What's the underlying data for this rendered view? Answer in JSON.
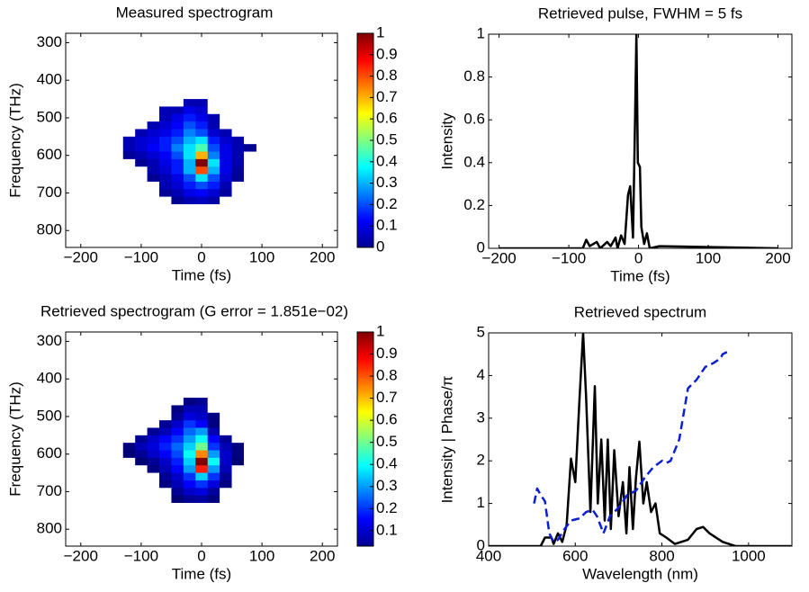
{
  "chart_data": [
    {
      "type": "heatmap",
      "title": "Measured spectrogram",
      "xlabel": "Time (fs)",
      "ylabel": "Frequency (THz)",
      "x": [
        -120,
        -100,
        -80,
        -60,
        -40,
        -20,
        0,
        20,
        40,
        60,
        80
      ],
      "y": [
        440,
        460,
        480,
        500,
        520,
        540,
        560,
        580,
        600,
        620,
        640,
        660,
        680,
        700,
        720,
        740
      ],
      "z": [
        [
          0,
          0,
          0,
          0,
          0,
          0,
          0,
          0,
          0,
          0,
          0
        ],
        [
          0,
          0,
          0,
          0,
          0,
          0.05,
          0.05,
          0,
          0,
          0,
          0
        ],
        [
          0,
          0,
          0,
          0.05,
          0.05,
          0.1,
          0.08,
          0,
          0,
          0,
          0
        ],
        [
          0,
          0,
          0,
          0.05,
          0.1,
          0.15,
          0.1,
          0.05,
          0,
          0,
          0
        ],
        [
          0,
          0,
          0.05,
          0.08,
          0.12,
          0.2,
          0.15,
          0.05,
          0,
          0,
          0
        ],
        [
          0,
          0.05,
          0.08,
          0.1,
          0.15,
          0.25,
          0.2,
          0.08,
          0.05,
          0,
          0
        ],
        [
          0.05,
          0.08,
          0.1,
          0.15,
          0.2,
          0.3,
          0.35,
          0.15,
          0.08,
          0.05,
          0
        ],
        [
          0.05,
          0.08,
          0.12,
          0.15,
          0.25,
          0.35,
          0.45,
          0.2,
          0.1,
          0.05,
          0.02
        ],
        [
          0.02,
          0.05,
          0.08,
          0.12,
          0.2,
          0.35,
          0.7,
          0.25,
          0.1,
          0.05,
          0
        ],
        [
          0,
          0.02,
          0.05,
          0.1,
          0.15,
          0.3,
          1,
          0.35,
          0.1,
          0.05,
          0
        ],
        [
          0,
          0,
          0.05,
          0.08,
          0.15,
          0.3,
          0.8,
          0.3,
          0.1,
          0.03,
          0
        ],
        [
          0,
          0,
          0.02,
          0.05,
          0.1,
          0.2,
          0.35,
          0.2,
          0.08,
          0.02,
          0
        ],
        [
          0,
          0,
          0,
          0.05,
          0.08,
          0.15,
          0.2,
          0.15,
          0.05,
          0,
          0
        ],
        [
          0,
          0,
          0,
          0.02,
          0.05,
          0.1,
          0.12,
          0.08,
          0.03,
          0,
          0
        ],
        [
          0,
          0,
          0,
          0,
          0.02,
          0.05,
          0.06,
          0.04,
          0,
          0,
          0
        ],
        [
          0,
          0,
          0,
          0,
          0,
          0,
          0,
          0,
          0,
          0,
          0
        ]
      ],
      "xlim": [
        -225,
        225
      ],
      "ylim": [
        275,
        845
      ],
      "y_reversed": true,
      "xticks": [
        {
          "value": -200,
          "label": "−200"
        },
        {
          "value": -100,
          "label": "−100"
        },
        0,
        100,
        200
      ],
      "yticks": [
        300,
        400,
        500,
        600,
        700,
        800
      ],
      "colormap": "jet",
      "clim": [
        0,
        1
      ],
      "cticks": [
        0,
        0.1,
        0.2,
        0.3,
        0.4,
        0.5,
        0.6,
        0.7,
        0.8,
        0.9,
        1
      ]
    },
    {
      "type": "line",
      "title": "Retrieved pulse, FWHM = 5 fs",
      "xlabel": "Time (fs)",
      "ylabel": "Intensity",
      "xlim": [
        -215,
        220
      ],
      "ylim": [
        0,
        1
      ],
      "xticks": [
        {
          "value": -200,
          "label": "−200"
        },
        {
          "value": -100,
          "label": "−100"
        },
        0,
        100,
        200
      ],
      "yticks": [
        0,
        0.2,
        0.4,
        0.6,
        0.8,
        1
      ],
      "series": [
        {
          "color": "#000000",
          "style": "solid",
          "x": [
            -200,
            -80,
            -75,
            -70,
            -60,
            -55,
            -45,
            -40,
            -33,
            -30,
            -25,
            -20,
            -15,
            -12,
            -8,
            -5,
            -3,
            -1,
            2,
            4,
            8,
            12,
            16,
            30,
            200
          ],
          "values": [
            0,
            0,
            0.04,
            0.01,
            0.03,
            0,
            0.03,
            0.01,
            0.05,
            0,
            0.06,
            0.02,
            0.25,
            0.29,
            0.05,
            0.6,
            1,
            0.4,
            0.38,
            0.1,
            0.02,
            0.07,
            0,
            0.01,
            0
          ]
        }
      ]
    },
    {
      "type": "heatmap",
      "title": "Retrieved spectrogram (G error = 1.851e−02)",
      "xlabel": "Time (fs)",
      "ylabel": "Frequency (THz)",
      "x": [
        -120,
        -100,
        -80,
        -60,
        -40,
        -20,
        0,
        20,
        40,
        60,
        80
      ],
      "y": [
        440,
        460,
        480,
        500,
        520,
        540,
        560,
        580,
        600,
        620,
        640,
        660,
        680,
        700,
        720,
        740
      ],
      "z": [
        [
          0,
          0,
          0,
          0,
          0,
          0,
          0,
          0,
          0,
          0,
          0
        ],
        [
          0,
          0,
          0,
          0,
          0,
          0.03,
          0.05,
          0,
          0,
          0,
          0
        ],
        [
          0,
          0,
          0,
          0,
          0.03,
          0.08,
          0.08,
          0,
          0,
          0,
          0
        ],
        [
          0,
          0,
          0,
          0,
          0.05,
          0.12,
          0.1,
          0.03,
          0,
          0,
          0
        ],
        [
          0,
          0,
          0,
          0.05,
          0.1,
          0.2,
          0.15,
          0.03,
          0,
          0,
          0
        ],
        [
          0,
          0,
          0.05,
          0.08,
          0.15,
          0.25,
          0.3,
          0.08,
          0,
          0,
          0
        ],
        [
          0,
          0.05,
          0.1,
          0.15,
          0.2,
          0.3,
          0.4,
          0.15,
          0.05,
          0,
          0
        ],
        [
          0.03,
          0.08,
          0.12,
          0.18,
          0.25,
          0.35,
          0.5,
          0.2,
          0.08,
          0.03,
          0
        ],
        [
          0.02,
          0.05,
          0.1,
          0.15,
          0.22,
          0.4,
          0.75,
          0.3,
          0.1,
          0.03,
          0
        ],
        [
          0,
          0.02,
          0.05,
          0.1,
          0.18,
          0.35,
          1,
          0.4,
          0.1,
          0.02,
          0
        ],
        [
          0,
          0,
          0.03,
          0.08,
          0.15,
          0.3,
          0.85,
          0.3,
          0.08,
          0,
          0
        ],
        [
          0,
          0,
          0,
          0.05,
          0.1,
          0.2,
          0.35,
          0.2,
          0.05,
          0,
          0
        ],
        [
          0,
          0,
          0,
          0.03,
          0.08,
          0.15,
          0.2,
          0.12,
          0.03,
          0,
          0
        ],
        [
          0,
          0,
          0,
          0,
          0.05,
          0.1,
          0.12,
          0.06,
          0,
          0,
          0
        ],
        [
          0,
          0,
          0,
          0,
          0.02,
          0.05,
          0.06,
          0.03,
          0,
          0,
          0
        ],
        [
          0,
          0,
          0,
          0,
          0,
          0,
          0,
          0,
          0,
          0,
          0
        ]
      ],
      "xlim": [
        -225,
        225
      ],
      "ylim": [
        275,
        845
      ],
      "y_reversed": true,
      "xticks": [
        {
          "value": -200,
          "label": "−200"
        },
        {
          "value": -100,
          "label": "−100"
        },
        0,
        100,
        200
      ],
      "yticks": [
        300,
        400,
        500,
        600,
        700,
        800
      ],
      "colormap": "jet",
      "clim": [
        0.03,
        1
      ],
      "cticks": [
        0.1,
        0.2,
        0.3,
        0.4,
        0.5,
        0.6,
        0.7,
        0.8,
        0.9,
        1
      ]
    },
    {
      "type": "line",
      "title": "Retrieved spectrum",
      "xlabel": "Wavelength (nm)",
      "ylabel": "Intensity | Phase/π",
      "xlim": [
        400,
        1100
      ],
      "ylim": [
        0,
        5
      ],
      "xticks": [
        400,
        600,
        800,
        1000
      ],
      "yticks": [
        0,
        1,
        2,
        3,
        4,
        5
      ],
      "series": [
        {
          "color": "#000000",
          "style": "solid",
          "x": [
            400,
            520,
            530,
            545,
            550,
            560,
            570,
            580,
            590,
            600,
            610,
            618,
            625,
            635,
            645,
            652,
            660,
            668,
            675,
            682,
            690,
            700,
            710,
            718,
            725,
            733,
            740,
            748,
            757,
            765,
            775,
            785,
            795,
            810,
            830,
            860,
            880,
            895,
            910,
            940,
            970,
            1100
          ],
          "values": [
            0,
            0,
            0.2,
            0.2,
            0.05,
            0.3,
            0.1,
            0.5,
            2.05,
            1.5,
            3.5,
            5,
            3.5,
            0.8,
            3.75,
            1,
            2.5,
            0.6,
            2.5,
            0.4,
            2.25,
            0.7,
            1.5,
            0.3,
            1.85,
            0.4,
            1.6,
            2.45,
            1,
            1.5,
            0.8,
            1,
            0.3,
            0.2,
            0.05,
            0.15,
            0.4,
            0.45,
            0.3,
            0.1,
            0,
            0
          ]
        },
        {
          "color": "#0a1fd6",
          "style": "dashed",
          "x": [
            505,
            512,
            520,
            530,
            540,
            550,
            560,
            575,
            590,
            610,
            625,
            640,
            650,
            665,
            680,
            700,
            720,
            740,
            760,
            780,
            800,
            810,
            820,
            840,
            860,
            880,
            900,
            920,
            935,
            940,
            950
          ],
          "values": [
            1,
            1.35,
            1.2,
            1.05,
            0.3,
            0.1,
            0.15,
            0.4,
            0.6,
            0.65,
            0.8,
            0.85,
            0.7,
            0.3,
            0.7,
            0.9,
            1.2,
            1.3,
            1.6,
            1.85,
            2,
            1.95,
            2,
            2.5,
            3.7,
            3.9,
            4.2,
            4.3,
            4.4,
            4.5,
            4.55
          ]
        }
      ]
    }
  ]
}
